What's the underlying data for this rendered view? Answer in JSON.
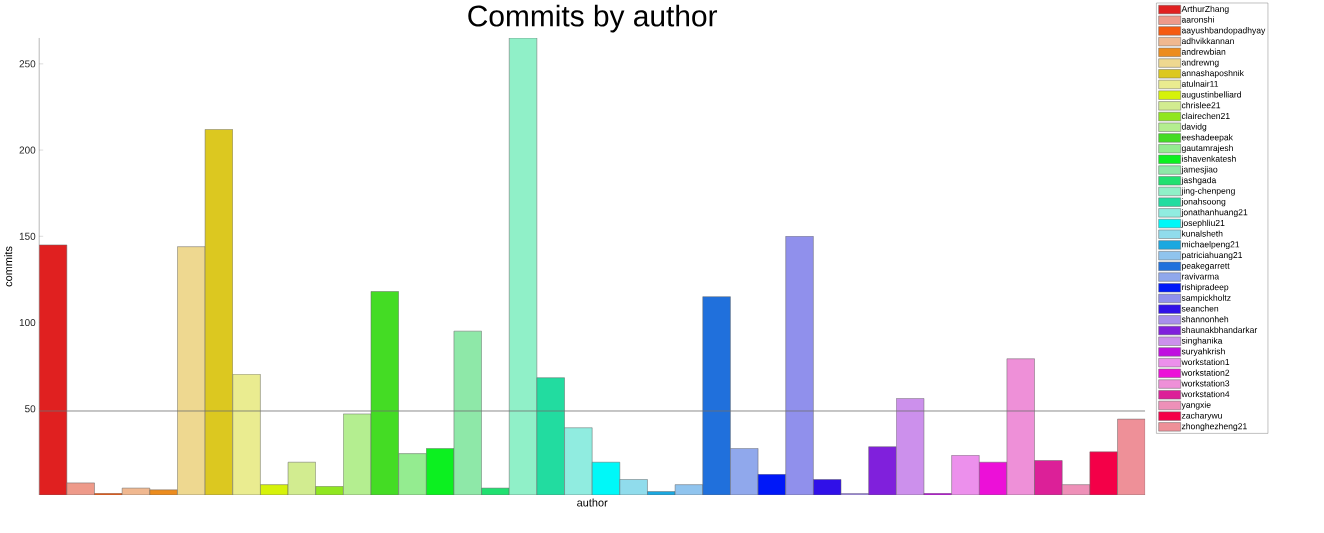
{
  "chart_data": {
    "type": "bar",
    "title": "Commits by author",
    "xlabel": "author",
    "ylabel": "commits",
    "categories": [
      null,
      null,
      null,
      null,
      null,
      null,
      null,
      null,
      null,
      null,
      null,
      null,
      null,
      null,
      null,
      null,
      null,
      null,
      null,
      null,
      null,
      null,
      null,
      null,
      null,
      null,
      null,
      null,
      null,
      null,
      null,
      null,
      null,
      null,
      null,
      null,
      null,
      null,
      null,
      null
    ],
    "series": [
      {
        "name": "ArthurZhang",
        "color": "#e02020",
        "values": [
          145,
          null,
          null,
          null,
          null,
          null,
          null,
          null,
          null,
          null,
          null,
          null,
          null,
          null,
          null,
          null,
          null,
          null,
          null,
          null,
          null,
          null,
          null,
          null,
          null,
          null,
          null,
          null,
          null,
          null,
          null,
          null,
          null,
          null,
          null,
          null,
          null,
          null,
          null,
          null
        ]
      },
      {
        "name": "aaronshi",
        "color": "#ee9a8a",
        "values": [
          null,
          7,
          null,
          null,
          null,
          null,
          null,
          null,
          null,
          null,
          null,
          null,
          null,
          null,
          null,
          null,
          null,
          null,
          null,
          null,
          null,
          null,
          null,
          null,
          null,
          null,
          null,
          null,
          null,
          null,
          null,
          null,
          null,
          null,
          null,
          null,
          null,
          null,
          null,
          null
        ]
      },
      {
        "name": "aayushbandopadhyay",
        "color": "#f55a10",
        "values": [
          null,
          null,
          1,
          null,
          null,
          null,
          null,
          null,
          null,
          null,
          null,
          null,
          null,
          null,
          null,
          null,
          null,
          null,
          null,
          null,
          null,
          null,
          null,
          null,
          null,
          null,
          null,
          null,
          null,
          null,
          null,
          null,
          null,
          null,
          null,
          null,
          null,
          null,
          null,
          null
        ]
      },
      {
        "name": "adhvikkannan",
        "color": "#f0b890",
        "values": [
          null,
          null,
          null,
          4,
          null,
          null,
          null,
          null,
          null,
          null,
          null,
          null,
          null,
          null,
          null,
          null,
          null,
          null,
          null,
          null,
          null,
          null,
          null,
          null,
          null,
          null,
          null,
          null,
          null,
          null,
          null,
          null,
          null,
          null,
          null,
          null,
          null,
          null,
          null,
          null
        ]
      },
      {
        "name": "andrewbian",
        "color": "#ec8c1e",
        "values": [
          null,
          null,
          null,
          null,
          3,
          null,
          null,
          null,
          null,
          null,
          null,
          null,
          null,
          null,
          null,
          null,
          null,
          null,
          null,
          null,
          null,
          null,
          null,
          null,
          null,
          null,
          null,
          null,
          null,
          null,
          null,
          null,
          null,
          null,
          null,
          null,
          null,
          null,
          null,
          null
        ]
      },
      {
        "name": "andrewng",
        "color": "#eed890",
        "values": [
          null,
          null,
          null,
          null,
          null,
          144,
          null,
          null,
          null,
          null,
          null,
          null,
          null,
          null,
          null,
          null,
          null,
          null,
          null,
          null,
          null,
          null,
          null,
          null,
          null,
          null,
          null,
          null,
          null,
          null,
          null,
          null,
          null,
          null,
          null,
          null,
          null,
          null,
          null,
          null
        ]
      },
      {
        "name": "annashaposhnik",
        "color": "#dcc820",
        "values": [
          null,
          null,
          null,
          null,
          null,
          null,
          212,
          null,
          null,
          null,
          null,
          null,
          null,
          null,
          null,
          null,
          null,
          null,
          null,
          null,
          null,
          null,
          null,
          null,
          null,
          null,
          null,
          null,
          null,
          null,
          null,
          null,
          null,
          null,
          null,
          null,
          null,
          null,
          null,
          null
        ]
      },
      {
        "name": "atulnair11",
        "color": "#eaec90",
        "values": [
          null,
          null,
          null,
          null,
          null,
          null,
          null,
          70,
          null,
          null,
          null,
          null,
          null,
          null,
          null,
          null,
          null,
          null,
          null,
          null,
          null,
          null,
          null,
          null,
          null,
          null,
          null,
          null,
          null,
          null,
          null,
          null,
          null,
          null,
          null,
          null,
          null,
          null,
          null,
          null
        ]
      },
      {
        "name": "augustinbelliard",
        "color": "#d6f20a",
        "values": [
          null,
          null,
          null,
          null,
          null,
          null,
          null,
          null,
          6,
          null,
          null,
          null,
          null,
          null,
          null,
          null,
          null,
          null,
          null,
          null,
          null,
          null,
          null,
          null,
          null,
          null,
          null,
          null,
          null,
          null,
          null,
          null,
          null,
          null,
          null,
          null,
          null,
          null,
          null,
          null
        ]
      },
      {
        "name": "chrislee21",
        "color": "#d2ec90",
        "values": [
          null,
          null,
          null,
          null,
          null,
          null,
          null,
          null,
          null,
          19,
          null,
          null,
          null,
          null,
          null,
          null,
          null,
          null,
          null,
          null,
          null,
          null,
          null,
          null,
          null,
          null,
          null,
          null,
          null,
          null,
          null,
          null,
          null,
          null,
          null,
          null,
          null,
          null,
          null,
          null
        ]
      },
      {
        "name": "clairechen21",
        "color": "#90e620",
        "values": [
          null,
          null,
          null,
          null,
          null,
          null,
          null,
          null,
          null,
          null,
          5,
          null,
          null,
          null,
          null,
          null,
          null,
          null,
          null,
          null,
          null,
          null,
          null,
          null,
          null,
          null,
          null,
          null,
          null,
          null,
          null,
          null,
          null,
          null,
          null,
          null,
          null,
          null,
          null,
          null
        ]
      },
      {
        "name": "davidg",
        "color": "#b4ee90",
        "values": [
          null,
          null,
          null,
          null,
          null,
          null,
          null,
          null,
          null,
          null,
          null,
          47,
          null,
          null,
          null,
          null,
          null,
          null,
          null,
          null,
          null,
          null,
          null,
          null,
          null,
          null,
          null,
          null,
          null,
          null,
          null,
          null,
          null,
          null,
          null,
          null,
          null,
          null,
          null,
          null
        ]
      },
      {
        "name": "eeshadeepak",
        "color": "#44dc24",
        "values": [
          null,
          null,
          null,
          null,
          null,
          null,
          null,
          null,
          null,
          null,
          null,
          null,
          118,
          null,
          null,
          null,
          null,
          null,
          null,
          null,
          null,
          null,
          null,
          null,
          null,
          null,
          null,
          null,
          null,
          null,
          null,
          null,
          null,
          null,
          null,
          null,
          null,
          null,
          null,
          null
        ]
      },
      {
        "name": "gautamrajesh",
        "color": "#94ec90",
        "values": [
          null,
          null,
          null,
          null,
          null,
          null,
          null,
          null,
          null,
          null,
          null,
          null,
          null,
          24,
          null,
          null,
          null,
          null,
          null,
          null,
          null,
          null,
          null,
          null,
          null,
          null,
          null,
          null,
          null,
          null,
          null,
          null,
          null,
          null,
          null,
          null,
          null,
          null,
          null,
          null
        ]
      },
      {
        "name": "ishavenkatesh",
        "color": "#0cf020",
        "values": [
          null,
          null,
          null,
          null,
          null,
          null,
          null,
          null,
          null,
          null,
          null,
          null,
          null,
          null,
          27,
          null,
          null,
          null,
          null,
          null,
          null,
          null,
          null,
          null,
          null,
          null,
          null,
          null,
          null,
          null,
          null,
          null,
          null,
          null,
          null,
          null,
          null,
          null,
          null,
          null
        ]
      },
      {
        "name": "jamesjiao",
        "color": "#8ee8a8",
        "values": [
          null,
          null,
          null,
          null,
          null,
          null,
          null,
          null,
          null,
          null,
          null,
          null,
          null,
          null,
          null,
          95,
          null,
          null,
          null,
          null,
          null,
          null,
          null,
          null,
          null,
          null,
          null,
          null,
          null,
          null,
          null,
          null,
          null,
          null,
          null,
          null,
          null,
          null,
          null,
          null
        ]
      },
      {
        "name": "jashgada",
        "color": "#20e070",
        "values": [
          null,
          null,
          null,
          null,
          null,
          null,
          null,
          null,
          null,
          null,
          null,
          null,
          null,
          null,
          null,
          null,
          4,
          null,
          null,
          null,
          null,
          null,
          null,
          null,
          null,
          null,
          null,
          null,
          null,
          null,
          null,
          null,
          null,
          null,
          null,
          null,
          null,
          null,
          null,
          null
        ]
      },
      {
        "name": "jing-chenpeng",
        "color": "#90f0c8",
        "values": [
          null,
          null,
          null,
          null,
          null,
          null,
          null,
          null,
          null,
          null,
          null,
          null,
          null,
          null,
          null,
          null,
          null,
          265,
          null,
          null,
          null,
          null,
          null,
          null,
          null,
          null,
          null,
          null,
          null,
          null,
          null,
          null,
          null,
          null,
          null,
          null,
          null,
          null,
          null,
          null
        ]
      },
      {
        "name": "jonahsoong",
        "color": "#22dca0",
        "values": [
          null,
          null,
          null,
          null,
          null,
          null,
          null,
          null,
          null,
          null,
          null,
          null,
          null,
          null,
          null,
          null,
          null,
          null,
          68,
          null,
          null,
          null,
          null,
          null,
          null,
          null,
          null,
          null,
          null,
          null,
          null,
          null,
          null,
          null,
          null,
          null,
          null,
          null,
          null,
          null
        ]
      },
      {
        "name": "jonathanhuang21",
        "color": "#90ece0",
        "values": [
          null,
          null,
          null,
          null,
          null,
          null,
          null,
          null,
          null,
          null,
          null,
          null,
          null,
          null,
          null,
          null,
          null,
          null,
          null,
          39,
          null,
          null,
          null,
          null,
          null,
          null,
          null,
          null,
          null,
          null,
          null,
          null,
          null,
          null,
          null,
          null,
          null,
          null,
          null,
          null
        ]
      },
      {
        "name": "josephliu21",
        "color": "#00f8f8",
        "values": [
          null,
          null,
          null,
          null,
          null,
          null,
          null,
          null,
          null,
          null,
          null,
          null,
          null,
          null,
          null,
          null,
          null,
          null,
          null,
          null,
          19,
          null,
          null,
          null,
          null,
          null,
          null,
          null,
          null,
          null,
          null,
          null,
          null,
          null,
          null,
          null,
          null,
          null,
          null,
          null
        ]
      },
      {
        "name": "kunalsheth",
        "color": "#90dcec",
        "values": [
          null,
          null,
          null,
          null,
          null,
          null,
          null,
          null,
          null,
          null,
          null,
          null,
          null,
          null,
          null,
          null,
          null,
          null,
          null,
          null,
          null,
          9,
          null,
          null,
          null,
          null,
          null,
          null,
          null,
          null,
          null,
          null,
          null,
          null,
          null,
          null,
          null,
          null,
          null,
          null
        ]
      },
      {
        "name": "michaelpeng21",
        "color": "#1aa8e0",
        "values": [
          null,
          null,
          null,
          null,
          null,
          null,
          null,
          null,
          null,
          null,
          null,
          null,
          null,
          null,
          null,
          null,
          null,
          null,
          null,
          null,
          null,
          null,
          2,
          null,
          null,
          null,
          null,
          null,
          null,
          null,
          null,
          null,
          null,
          null,
          null,
          null,
          null,
          null,
          null,
          null
        ]
      },
      {
        "name": "patriciahuang21",
        "color": "#90c4ee",
        "values": [
          null,
          null,
          null,
          null,
          null,
          null,
          null,
          null,
          null,
          null,
          null,
          null,
          null,
          null,
          null,
          null,
          null,
          null,
          null,
          null,
          null,
          null,
          null,
          6,
          null,
          null,
          null,
          null,
          null,
          null,
          null,
          null,
          null,
          null,
          null,
          null,
          null,
          null,
          null,
          null
        ]
      },
      {
        "name": "peakegarrett",
        "color": "#2070dc",
        "values": [
          null,
          null,
          null,
          null,
          null,
          null,
          null,
          null,
          null,
          null,
          null,
          null,
          null,
          null,
          null,
          null,
          null,
          null,
          null,
          null,
          null,
          null,
          null,
          null,
          115,
          null,
          null,
          null,
          null,
          null,
          null,
          null,
          null,
          null,
          null,
          null,
          null,
          null,
          null,
          null
        ]
      },
      {
        "name": "ravivarma",
        "color": "#90a8ec",
        "values": [
          null,
          null,
          null,
          null,
          null,
          null,
          null,
          null,
          null,
          null,
          null,
          null,
          null,
          null,
          null,
          null,
          null,
          null,
          null,
          null,
          null,
          null,
          null,
          null,
          null,
          27,
          null,
          null,
          null,
          null,
          null,
          null,
          null,
          null,
          null,
          null,
          null,
          null,
          null,
          null
        ]
      },
      {
        "name": "rishipradeep",
        "color": "#0018f8",
        "values": [
          null,
          null,
          null,
          null,
          null,
          null,
          null,
          null,
          null,
          null,
          null,
          null,
          null,
          null,
          null,
          null,
          null,
          null,
          null,
          null,
          null,
          null,
          null,
          null,
          null,
          null,
          12,
          null,
          null,
          null,
          null,
          null,
          null,
          null,
          null,
          null,
          null,
          null,
          null,
          null
        ]
      },
      {
        "name": "sampickholtz",
        "color": "#9090ec",
        "values": [
          null,
          null,
          null,
          null,
          null,
          null,
          null,
          null,
          null,
          null,
          null,
          null,
          null,
          null,
          null,
          null,
          null,
          null,
          null,
          null,
          null,
          null,
          null,
          null,
          null,
          null,
          null,
          150,
          null,
          null,
          null,
          null,
          null,
          null,
          null,
          null,
          null,
          null,
          null,
          null
        ]
      },
      {
        "name": "seanchen",
        "color": "#3010e8",
        "values": [
          null,
          null,
          null,
          null,
          null,
          null,
          null,
          null,
          null,
          null,
          null,
          null,
          null,
          null,
          null,
          null,
          null,
          null,
          null,
          null,
          null,
          null,
          null,
          null,
          null,
          null,
          null,
          null,
          9,
          null,
          null,
          null,
          null,
          null,
          null,
          null,
          null,
          null,
          null,
          null
        ]
      },
      {
        "name": "shannonheh",
        "color": "#a890ec",
        "values": [
          null,
          null,
          null,
          null,
          null,
          null,
          null,
          null,
          null,
          null,
          null,
          null,
          null,
          null,
          null,
          null,
          null,
          null,
          null,
          null,
          null,
          null,
          null,
          null,
          null,
          null,
          null,
          null,
          null,
          1,
          null,
          null,
          null,
          null,
          null,
          null,
          null,
          null,
          null,
          null
        ]
      },
      {
        "name": "shaunakbhandarkar",
        "color": "#8020dc",
        "values": [
          null,
          null,
          null,
          null,
          null,
          null,
          null,
          null,
          null,
          null,
          null,
          null,
          null,
          null,
          null,
          null,
          null,
          null,
          null,
          null,
          null,
          null,
          null,
          null,
          null,
          null,
          null,
          null,
          null,
          null,
          28,
          null,
          null,
          null,
          null,
          null,
          null,
          null,
          null,
          null
        ]
      },
      {
        "name": "singhanika",
        "color": "#cc90ec",
        "values": [
          null,
          null,
          null,
          null,
          null,
          null,
          null,
          null,
          null,
          null,
          null,
          null,
          null,
          null,
          null,
          null,
          null,
          null,
          null,
          null,
          null,
          null,
          null,
          null,
          null,
          null,
          null,
          null,
          null,
          null,
          null,
          56,
          null,
          null,
          null,
          null,
          null,
          null,
          null,
          null
        ]
      },
      {
        "name": "suryahkrish",
        "color": "#c010e0",
        "values": [
          null,
          null,
          null,
          null,
          null,
          null,
          null,
          null,
          null,
          null,
          null,
          null,
          null,
          null,
          null,
          null,
          null,
          null,
          null,
          null,
          null,
          null,
          null,
          null,
          null,
          null,
          null,
          null,
          null,
          null,
          null,
          null,
          1,
          null,
          null,
          null,
          null,
          null,
          null,
          null
        ]
      },
      {
        "name": "workstation1",
        "color": "#ec90ec",
        "values": [
          null,
          null,
          null,
          null,
          null,
          null,
          null,
          null,
          null,
          null,
          null,
          null,
          null,
          null,
          null,
          null,
          null,
          null,
          null,
          null,
          null,
          null,
          null,
          null,
          null,
          null,
          null,
          null,
          null,
          null,
          null,
          null,
          null,
          23,
          null,
          null,
          null,
          null,
          null,
          null
        ]
      },
      {
        "name": "workstation2",
        "color": "#ec10d8",
        "values": [
          null,
          null,
          null,
          null,
          null,
          null,
          null,
          null,
          null,
          null,
          null,
          null,
          null,
          null,
          null,
          null,
          null,
          null,
          null,
          null,
          null,
          null,
          null,
          null,
          null,
          null,
          null,
          null,
          null,
          null,
          null,
          null,
          null,
          null,
          19,
          null,
          null,
          null,
          null,
          null
        ]
      },
      {
        "name": "workstation3",
        "color": "#ee90d8",
        "values": [
          null,
          null,
          null,
          null,
          null,
          null,
          null,
          null,
          null,
          null,
          null,
          null,
          null,
          null,
          null,
          null,
          null,
          null,
          null,
          null,
          null,
          null,
          null,
          null,
          null,
          null,
          null,
          null,
          null,
          null,
          null,
          null,
          null,
          null,
          null,
          79,
          null,
          null,
          null,
          null
        ]
      },
      {
        "name": "workstation4",
        "color": "#dc2098",
        "values": [
          null,
          null,
          null,
          null,
          null,
          null,
          null,
          null,
          null,
          null,
          null,
          null,
          null,
          null,
          null,
          null,
          null,
          null,
          null,
          null,
          null,
          null,
          null,
          null,
          null,
          null,
          null,
          null,
          null,
          null,
          null,
          null,
          null,
          null,
          null,
          null,
          20,
          null,
          null,
          null
        ]
      },
      {
        "name": "yangxie",
        "color": "#ee90b8",
        "values": [
          null,
          null,
          null,
          null,
          null,
          null,
          null,
          null,
          null,
          null,
          null,
          null,
          null,
          null,
          null,
          null,
          null,
          null,
          null,
          null,
          null,
          null,
          null,
          null,
          null,
          null,
          null,
          null,
          null,
          null,
          null,
          null,
          null,
          null,
          null,
          null,
          null,
          6,
          null,
          null
        ]
      },
      {
        "name": "zacharywu",
        "color": "#f40048",
        "values": [
          null,
          null,
          null,
          null,
          null,
          null,
          null,
          null,
          null,
          null,
          null,
          null,
          null,
          null,
          null,
          null,
          null,
          null,
          null,
          null,
          null,
          null,
          null,
          null,
          null,
          null,
          null,
          null,
          null,
          null,
          null,
          null,
          null,
          null,
          null,
          null,
          null,
          null,
          25,
          null
        ]
      },
      {
        "name": "zhonghezheng21",
        "color": "#ee9098",
        "values": [
          null,
          null,
          null,
          null,
          null,
          null,
          null,
          null,
          null,
          null,
          null,
          null,
          null,
          null,
          null,
          null,
          null,
          null,
          null,
          null,
          null,
          null,
          null,
          null,
          null,
          null,
          null,
          null,
          null,
          null,
          null,
          null,
          null,
          null,
          null,
          null,
          null,
          null,
          null,
          44
        ]
      }
    ],
    "ylim": [
      0,
      265
    ],
    "yticks": [
      50,
      100,
      150,
      200,
      250
    ],
    "ref_lines": [
      {
        "axis": "y",
        "value": 48.7,
        "color": "#707070"
      }
    ],
    "tick_labels": "y",
    "legend": "right"
  }
}
